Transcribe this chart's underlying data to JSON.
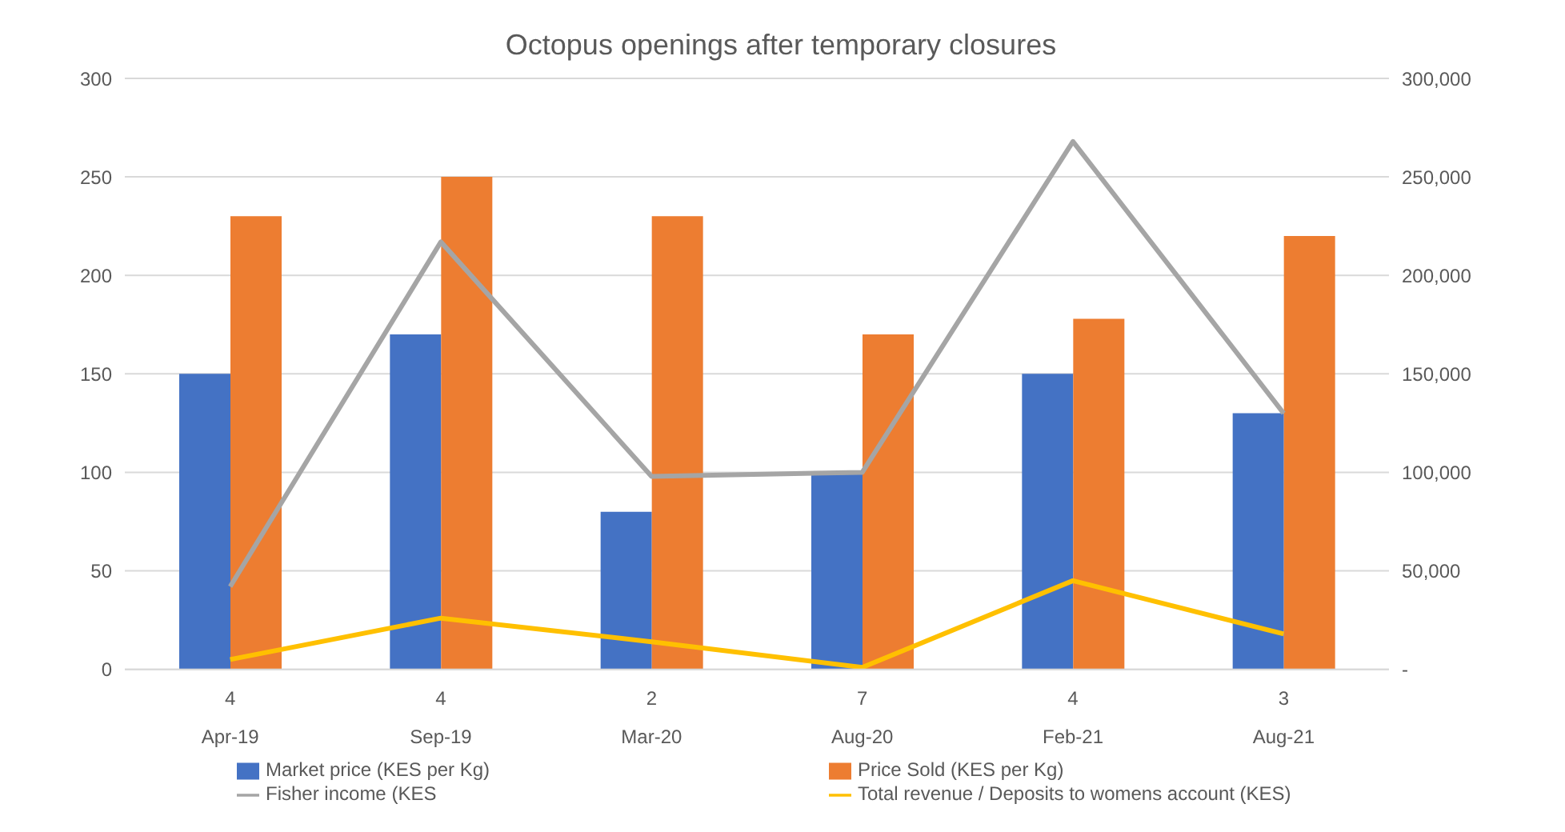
{
  "chart_data": {
    "type": "bar",
    "title": "Octopus openings after temporary closures",
    "categories": [
      "4\nApr-19",
      "4\nSep-19",
      "2\nMar-20",
      "7\nAug-20",
      "4\nFeb-21",
      "3\nAug-21"
    ],
    "series": [
      {
        "name": "Market price (KES per Kg)",
        "color": "#4472c4",
        "values": [
          150,
          170,
          80,
          100,
          150,
          130
        ]
      },
      {
        "name": "Price Sold (KES per Kg)",
        "color": "#ed7d31",
        "values": [
          230,
          250,
          230,
          170,
          178,
          220
        ]
      },
      {
        "name": "Fisher income (KES",
        "type": "line",
        "axis": "y2",
        "color": "#a5a5a5",
        "values": [
          42000,
          217000,
          98000,
          100000,
          268000,
          130000
        ]
      },
      {
        "name": "Total revenue / Deposits to womens account (KES)",
        "type": "line",
        "axis": "y2",
        "color": "#ffc000",
        "values": [
          5000,
          26000,
          14000,
          1000,
          45000,
          18000
        ]
      }
    ],
    "ylim": [
      0,
      300
    ],
    "yticks": [
      0,
      50,
      100,
      150,
      200,
      250,
      300
    ],
    "y2lim": [
      0,
      300000
    ],
    "y2ticks": [
      {
        "value": 0,
        "label": "-"
      },
      {
        "value": 50000,
        "label": "50,000"
      },
      {
        "value": 100000,
        "label": "100,000"
      },
      {
        "value": 150000,
        "label": "150,000"
      },
      {
        "value": 200000,
        "label": "200,000"
      },
      {
        "value": 250000,
        "label": "250,000"
      },
      {
        "value": 300000,
        "label": "300,000"
      }
    ],
    "grid": "y",
    "legend": "bottom",
    "marker": "none",
    "line_style": "solid"
  }
}
